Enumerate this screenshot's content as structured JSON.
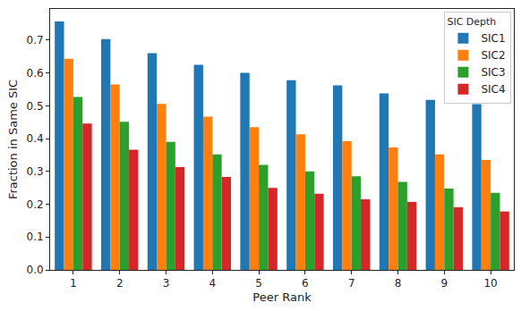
{
  "chart_data": {
    "type": "bar",
    "x_label": "Peer Rank",
    "y_label": "Fraction in Same SIC",
    "legend_title": "SIC Depth",
    "legend": "upper right",
    "grid": false,
    "categories": [
      "1",
      "2",
      "3",
      "4",
      "5",
      "6",
      "7",
      "8",
      "9",
      "10"
    ],
    "series": [
      {
        "name": "SIC1",
        "color": "#1f77b4",
        "values": [
          0.757,
          0.703,
          0.66,
          0.625,
          0.6,
          0.578,
          0.562,
          0.538,
          0.518,
          0.505
        ]
      },
      {
        "name": "SIC2",
        "color": "#ff7f0e",
        "values": [
          0.643,
          0.565,
          0.506,
          0.467,
          0.435,
          0.413,
          0.392,
          0.373,
          0.352,
          0.335
        ]
      },
      {
        "name": "SIC3",
        "color": "#2ca02c",
        "values": [
          0.527,
          0.451,
          0.39,
          0.352,
          0.32,
          0.3,
          0.285,
          0.268,
          0.248,
          0.235
        ]
      },
      {
        "name": "SIC4",
        "color": "#d62728",
        "values": [
          0.446,
          0.366,
          0.313,
          0.283,
          0.25,
          0.232,
          0.215,
          0.207,
          0.191,
          0.178
        ]
      }
    ],
    "ylim": [
      0,
      0.795
    ],
    "yticks": [
      {
        "value": 0,
        "label": "0.0"
      },
      {
        "value": 0.1,
        "label": "0.1"
      },
      {
        "value": 0.2,
        "label": "0.2"
      },
      {
        "value": 0.3,
        "label": "0.3"
      },
      {
        "value": 0.4,
        "label": "0.4"
      },
      {
        "value": 0.5,
        "label": "0.5"
      },
      {
        "value": 0.6,
        "label": "0.6"
      },
      {
        "value": 0.7,
        "label": "0.7"
      }
    ]
  }
}
